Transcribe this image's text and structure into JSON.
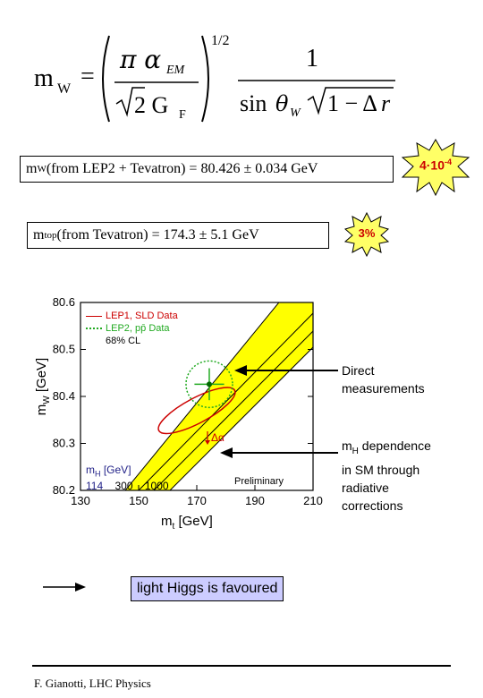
{
  "formula": {
    "lhs_sub": "W",
    "exponent": "1/2",
    "numerator_one": "1"
  },
  "lep_tevatron_box": {
    "prefix": "m",
    "sub": "W",
    "text": " (from LEP2 + Tevatron) = 80.426 ± 0.034 GeV"
  },
  "tevatron_box": {
    "prefix": "m",
    "sub": "top",
    "text": " (from Tevatron) = 174.3 ± 5.1 GeV"
  },
  "burst_large": {
    "label": "4·10",
    "sup": "-4",
    "color": "#ffff66"
  },
  "burst_small": {
    "label": "3%",
    "color": "#ffff66"
  },
  "annotations": {
    "direct": [
      "Direct",
      "measurements"
    ],
    "mh_dep": [
      "dependence",
      "in SM through",
      "radiative",
      "corrections"
    ],
    "mh_prefix": "m",
    "mh_sub": "H"
  },
  "conclusion": "light Higgs is favoured",
  "footer": "F. Gianotti,  LHC Physics",
  "chart_data": {
    "type": "scatter",
    "xlabel": "m",
    "xlabel_sub": "t",
    "xlabel_unit": "[GeV]",
    "ylabel": "m",
    "ylabel_sub": "W",
    "ylabel_unit": "[GeV]",
    "xlim": [
      130,
      210
    ],
    "ylim": [
      80.2,
      80.6
    ],
    "xticks": [
      "130",
      "150",
      "170",
      "190",
      "210"
    ],
    "yticks": [
      "80.2",
      "80.3",
      "80.4",
      "80.5",
      "80.6"
    ],
    "legend": [
      {
        "label": "LEP1, SLD Data",
        "color": "#cc0000",
        "style": "solid"
      },
      {
        "label": "LEP2, pp̄ Data",
        "color": "#22aa22",
        "style": "dotted"
      },
      {
        "label": "68% CL",
        "color": "#000000",
        "style": "none"
      }
    ],
    "direct_point": {
      "x": 174.3,
      "y": 80.426,
      "ex": 5.1,
      "ey": 0.034
    },
    "indirect_ellipse": {
      "cx": 170,
      "cy": 80.37,
      "color": "#cc0000"
    },
    "sm_band_color": "#ffff00",
    "mh_title": "m",
    "mh_title_sub": "H",
    "mh_unit": "[GeV]",
    "mh_values": [
      "114",
      "300",
      "1000"
    ],
    "band_label": "Δα",
    "preliminary": "Preliminary"
  }
}
